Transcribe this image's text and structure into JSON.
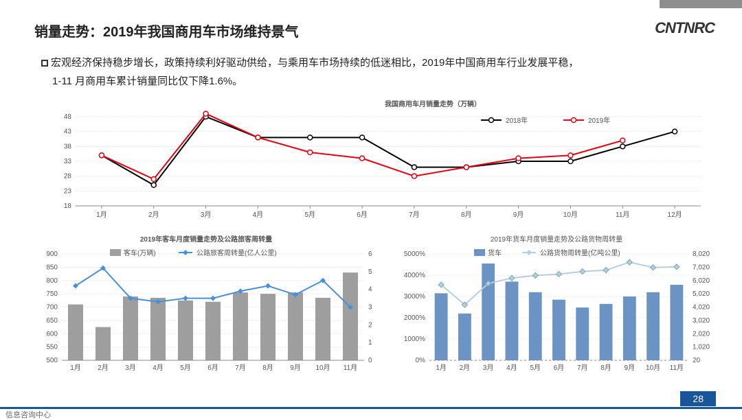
{
  "slide": {
    "title": "销量走势：2019年我国商用车市场维持景气",
    "subtitle1": "宏观经济保持稳步增长，政策持续利好驱动供给，与乘用车市场持续的低迷相比，2019年中国商用车行业发展平稳，",
    "subtitle2": "1-11 月商用车累计销量同比仅下降1.6%。",
    "logo": "CNTNRC",
    "page_num": "28",
    "footer": "信息咨询中心"
  },
  "chart_main": {
    "title": "我国商用车月销量走势（万辆）",
    "type": "line",
    "ylim": [
      18,
      48
    ],
    "ytick_step": 5,
    "yticks": [
      18,
      23,
      28,
      33,
      38,
      43,
      48
    ],
    "categories": [
      "1月",
      "2月",
      "3月",
      "4月",
      "5月",
      "6月",
      "7月",
      "8月",
      "9月",
      "10月",
      "11月",
      "12月"
    ],
    "series": [
      {
        "name": "2018年",
        "color": "#000000",
        "marker": "circle",
        "values": [
          35,
          25,
          48,
          41,
          41,
          41,
          31,
          31,
          33,
          33,
          38,
          43
        ]
      },
      {
        "name": "2019年",
        "color": "#e60012",
        "marker": "circle",
        "values": [
          35,
          27,
          49,
          41,
          36,
          34,
          28,
          31,
          34,
          35,
          40,
          null
        ]
      }
    ],
    "grid_color": "#d4d4d4",
    "background": "#ffffff",
    "label_fontsize": 10
  },
  "chart_left": {
    "title": "2019年客车月度销量走势及公路旅客周转量",
    "type": "bar+line",
    "categories": [
      "1月",
      "2月",
      "3月",
      "4月",
      "5月",
      "6月",
      "7月",
      "8月",
      "9月",
      "10月",
      "11月"
    ],
    "y1": {
      "lim": [
        500,
        900
      ],
      "step": 50,
      "ticks": [
        500,
        550,
        600,
        650,
        700,
        750,
        800,
        850,
        900
      ]
    },
    "y2": {
      "lim": [
        0,
        6
      ],
      "step": 1,
      "ticks": [
        0,
        1,
        2,
        3,
        4,
        5,
        6
      ]
    },
    "bar": {
      "name": "客车(万辆)",
      "color": "#9e9e9e",
      "values": [
        710,
        625,
        740,
        735,
        725,
        720,
        755,
        750,
        755,
        735,
        830
      ]
    },
    "line": {
      "name": "公路旅客周转量(亿人公里)",
      "color": "#4a90d9",
      "values": [
        4.2,
        5.2,
        3.5,
        3.3,
        3.5,
        3.5,
        3.9,
        4.2,
        3.7,
        4.5,
        3.0
      ],
      "marker": "diamond"
    },
    "label_fontsize": 10
  },
  "chart_right": {
    "title": "2019年货车月度销量走势及公路货物周转量",
    "type": "bar+line",
    "categories": [
      "1月",
      "2月",
      "3月",
      "4月",
      "5月",
      "6月",
      "7月",
      "8月",
      "9月",
      "10月",
      "11月"
    ],
    "y1": {
      "lim": [
        0,
        5000
      ],
      "step": 1000,
      "ticks": [
        "0%",
        "1000%",
        "2000%",
        "3000%",
        "4000%",
        "5000%"
      ]
    },
    "y2": {
      "lim": [
        20,
        8020
      ],
      "step": 1000,
      "ticks": [
        "20",
        "1,020",
        "2,020",
        "3,020",
        "4,020",
        "5,020",
        "6,020",
        "7,020",
        "8,020"
      ]
    },
    "bar": {
      "name": "货车",
      "color": "#6b94c4",
      "values": [
        3150,
        2200,
        4550,
        3700,
        3200,
        2850,
        2480,
        2650,
        3000,
        3200,
        3550
      ]
    },
    "line": {
      "name": "公路货物周转量(亿吨公里)",
      "color": "#b8cde0",
      "values": [
        5700,
        4200,
        5800,
        6200,
        6400,
        6500,
        6700,
        6800,
        7400,
        7000,
        7050
      ],
      "marker": "diamond"
    },
    "label_fontsize": 10
  },
  "colors": {
    "accent": "#1a5599",
    "tab": "#8e8e8e"
  }
}
